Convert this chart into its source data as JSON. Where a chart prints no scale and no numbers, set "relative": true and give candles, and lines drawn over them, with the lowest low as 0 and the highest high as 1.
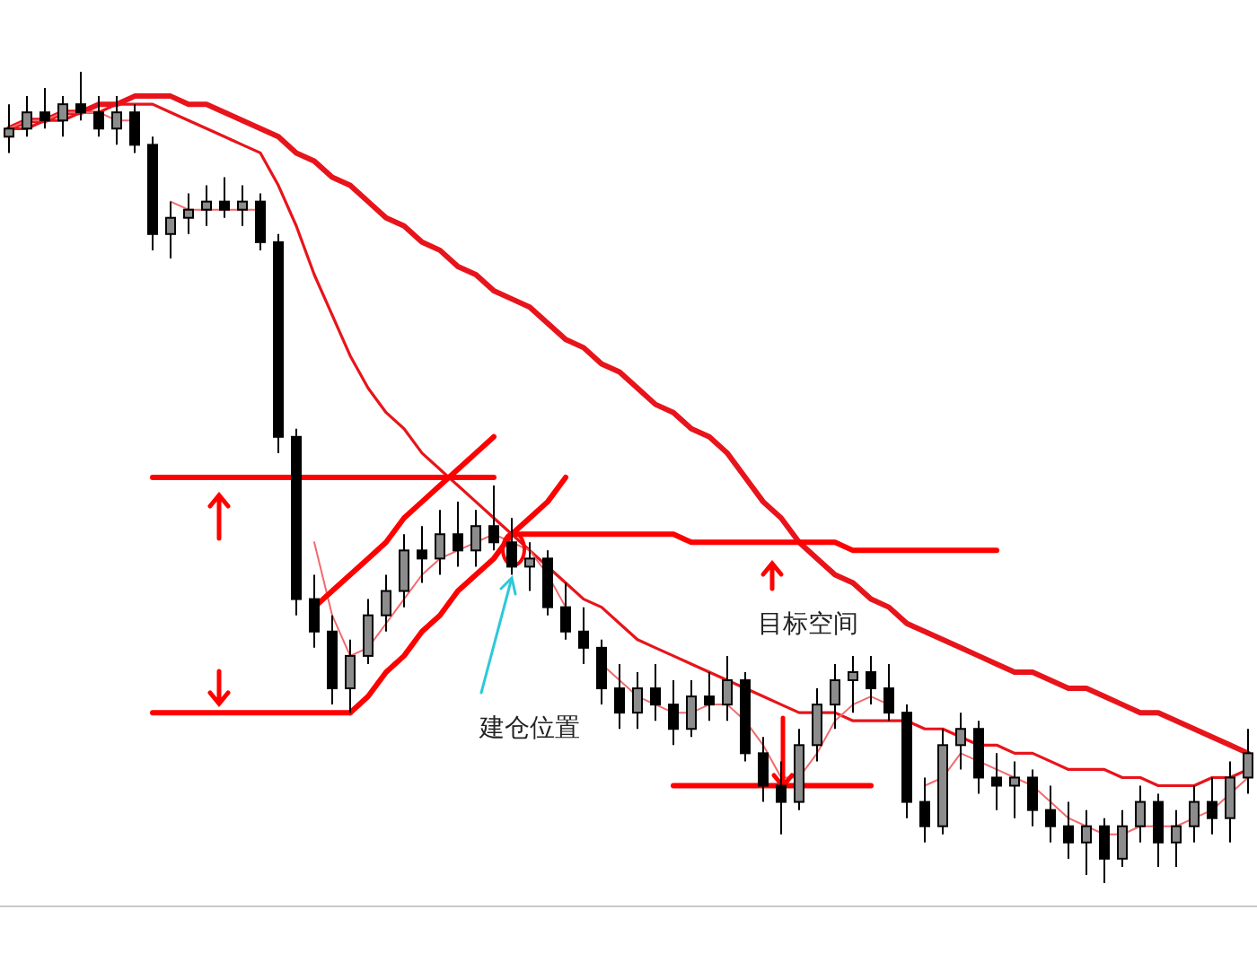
{
  "chart_data": {
    "type": "candlestick",
    "relative": true,
    "categories": [
      null,
      null,
      null,
      null,
      null,
      null,
      null,
      null,
      null,
      null,
      null,
      null,
      null,
      null,
      null,
      null,
      null,
      null,
      null,
      null,
      null,
      null,
      null,
      null,
      null,
      null,
      null,
      null,
      null,
      null,
      null,
      null,
      null,
      null,
      null,
      null,
      null,
      null,
      null,
      null,
      null,
      null,
      null,
      null,
      null,
      null,
      null,
      null,
      null,
      null,
      null,
      null,
      null,
      null,
      null,
      null,
      null,
      null,
      null,
      null,
      null,
      null,
      null,
      null,
      null,
      null,
      null,
      null,
      null,
      null
    ],
    "ohlc": [
      [
        0.92,
        0.96,
        0.9,
        0.93
      ],
      [
        0.93,
        0.97,
        0.92,
        0.95
      ],
      [
        0.95,
        0.98,
        0.93,
        0.94
      ],
      [
        0.94,
        0.97,
        0.92,
        0.96
      ],
      [
        0.96,
        1.0,
        0.94,
        0.95
      ],
      [
        0.95,
        0.97,
        0.92,
        0.93
      ],
      [
        0.93,
        0.97,
        0.91,
        0.95
      ],
      [
        0.95,
        0.96,
        0.9,
        0.91
      ],
      [
        0.91,
        0.92,
        0.78,
        0.8
      ],
      [
        0.8,
        0.84,
        0.77,
        0.82
      ],
      [
        0.82,
        0.85,
        0.8,
        0.83
      ],
      [
        0.83,
        0.86,
        0.81,
        0.84
      ],
      [
        0.84,
        0.87,
        0.82,
        0.83
      ],
      [
        0.83,
        0.86,
        0.81,
        0.84
      ],
      [
        0.84,
        0.85,
        0.78,
        0.79
      ],
      [
        0.79,
        0.8,
        0.53,
        0.55
      ],
      [
        0.55,
        0.56,
        0.33,
        0.35
      ],
      [
        0.35,
        0.38,
        0.29,
        0.31
      ],
      [
        0.31,
        0.33,
        0.22,
        0.24
      ],
      [
        0.24,
        0.3,
        0.21,
        0.28
      ],
      [
        0.28,
        0.35,
        0.27,
        0.33
      ],
      [
        0.33,
        0.38,
        0.31,
        0.36
      ],
      [
        0.36,
        0.43,
        0.34,
        0.41
      ],
      [
        0.41,
        0.44,
        0.37,
        0.4
      ],
      [
        0.4,
        0.46,
        0.38,
        0.43
      ],
      [
        0.43,
        0.47,
        0.39,
        0.41
      ],
      [
        0.41,
        0.46,
        0.39,
        0.44
      ],
      [
        0.44,
        0.49,
        0.41,
        0.42
      ],
      [
        0.42,
        0.45,
        0.38,
        0.39
      ],
      [
        0.39,
        0.42,
        0.36,
        0.4
      ],
      [
        0.4,
        0.41,
        0.33,
        0.34
      ],
      [
        0.34,
        0.37,
        0.3,
        0.31
      ],
      [
        0.31,
        0.34,
        0.27,
        0.29
      ],
      [
        0.29,
        0.3,
        0.22,
        0.24
      ],
      [
        0.24,
        0.27,
        0.19,
        0.21
      ],
      [
        0.21,
        0.26,
        0.19,
        0.24
      ],
      [
        0.24,
        0.27,
        0.2,
        0.22
      ],
      [
        0.22,
        0.25,
        0.17,
        0.19
      ],
      [
        0.19,
        0.25,
        0.18,
        0.23
      ],
      [
        0.23,
        0.26,
        0.2,
        0.22
      ],
      [
        0.22,
        0.28,
        0.2,
        0.25
      ],
      [
        0.25,
        0.26,
        0.15,
        0.16
      ],
      [
        0.16,
        0.18,
        0.1,
        0.12
      ],
      [
        0.12,
        0.15,
        0.06,
        0.1
      ],
      [
        0.1,
        0.19,
        0.09,
        0.17
      ],
      [
        0.17,
        0.24,
        0.15,
        0.22
      ],
      [
        0.22,
        0.27,
        0.19,
        0.25
      ],
      [
        0.25,
        0.28,
        0.21,
        0.26
      ],
      [
        0.26,
        0.28,
        0.22,
        0.24
      ],
      [
        0.24,
        0.27,
        0.2,
        0.21
      ],
      [
        0.21,
        0.22,
        0.08,
        0.1
      ],
      [
        0.1,
        0.13,
        0.05,
        0.07
      ],
      [
        0.07,
        0.19,
        0.06,
        0.17
      ],
      [
        0.17,
        0.21,
        0.14,
        0.19
      ],
      [
        0.19,
        0.2,
        0.11,
        0.13
      ],
      [
        0.13,
        0.16,
        0.09,
        0.12
      ],
      [
        0.12,
        0.15,
        0.08,
        0.13
      ],
      [
        0.13,
        0.14,
        0.07,
        0.09
      ],
      [
        0.09,
        0.12,
        0.05,
        0.07
      ],
      [
        0.07,
        0.1,
        0.03,
        0.05
      ],
      [
        0.05,
        0.09,
        0.01,
        0.07
      ],
      [
        0.07,
        0.08,
        0.0,
        0.03
      ],
      [
        0.03,
        0.09,
        0.02,
        0.07
      ],
      [
        0.07,
        0.12,
        0.05,
        0.1
      ],
      [
        0.1,
        0.11,
        0.02,
        0.05
      ],
      [
        0.05,
        0.09,
        0.02,
        0.07
      ],
      [
        0.07,
        0.12,
        0.05,
        0.1
      ],
      [
        0.1,
        0.13,
        0.06,
        0.08
      ],
      [
        0.08,
        0.15,
        0.05,
        0.13
      ],
      [
        0.13,
        0.19,
        0.11,
        0.16
      ]
    ],
    "series": [
      {
        "type": "line",
        "color": "#e8141b",
        "values": [
          0.93,
          0.94,
          0.94,
          0.95,
          0.95,
          0.96,
          0.96,
          0.97,
          0.97,
          0.97,
          0.96,
          0.96,
          0.95,
          0.94,
          0.93,
          0.92,
          0.9,
          0.89,
          0.87,
          0.86,
          0.84,
          0.82,
          0.81,
          0.79,
          0.78,
          0.76,
          0.75,
          0.73,
          0.72,
          0.71,
          0.69,
          0.67,
          0.66,
          0.64,
          0.63,
          0.61,
          0.59,
          0.58,
          0.56,
          0.55,
          0.53,
          0.5,
          0.47,
          0.45,
          0.42,
          0.4,
          0.38,
          0.37,
          0.35,
          0.34,
          0.32,
          0.31,
          0.3,
          0.29,
          0.28,
          0.27,
          0.26,
          0.26,
          0.25,
          0.24,
          0.24,
          0.23,
          0.22,
          0.21,
          0.21,
          0.2,
          0.19,
          0.18,
          0.17,
          0.16
        ]
      },
      {
        "type": "line",
        "color": "#e8141b",
        "values": [
          0.93,
          0.93,
          0.94,
          0.94,
          0.95,
          0.95,
          0.96,
          0.96,
          0.96,
          0.95,
          0.94,
          0.93,
          0.92,
          0.91,
          0.9,
          0.86,
          0.81,
          0.75,
          0.7,
          0.65,
          0.61,
          0.58,
          0.56,
          0.53,
          0.51,
          0.49,
          0.47,
          0.45,
          0.43,
          0.41,
          0.39,
          0.37,
          0.35,
          0.34,
          0.32,
          0.3,
          0.29,
          0.28,
          0.27,
          0.26,
          0.25,
          0.24,
          0.23,
          0.22,
          0.21,
          0.21,
          0.21,
          0.2,
          0.2,
          0.2,
          0.2,
          0.19,
          0.19,
          0.18,
          0.17,
          0.17,
          0.16,
          0.16,
          0.15,
          0.14,
          0.14,
          0.14,
          0.13,
          0.13,
          0.12,
          0.12,
          0.12,
          0.13,
          0.13,
          0.14
        ]
      },
      {
        "type": "line",
        "color": "#f06a6e",
        "values": [
          0.93,
          0.94,
          0.94,
          0.95,
          0.95,
          0.95,
          0.94,
          0.94,
          null,
          0.84,
          0.83,
          0.83,
          0.83,
          0.83,
          0.83,
          null,
          null,
          0.42,
          0.33,
          0.28,
          0.29,
          0.32,
          0.35,
          0.38,
          0.4,
          0.41,
          0.42,
          0.43,
          0.42,
          0.41,
          0.38,
          0.34,
          null,
          0.27,
          0.25,
          0.23,
          0.22,
          0.21,
          0.21,
          0.22,
          0.22,
          0.2,
          0.17,
          0.13,
          0.13,
          0.16,
          0.2,
          0.22,
          0.23,
          0.22,
          null,
          0.12,
          0.13,
          0.16,
          0.15,
          0.14,
          0.13,
          0.12,
          0.1,
          0.08,
          0.07,
          0.06,
          0.06,
          0.07,
          0.07,
          0.07,
          0.08,
          0.09,
          0.11,
          0.13
        ]
      },
      {
        "type": "line",
        "color": "#ff0000",
        "values": [
          null,
          null,
          null,
          null,
          null,
          null,
          null,
          null,
          0.5,
          0.5,
          0.5,
          0.5,
          0.5,
          0.5,
          0.5,
          0.5,
          0.5,
          0.5,
          0.5,
          0.5,
          0.5,
          0.5,
          0.5,
          0.5,
          0.5,
          0.5,
          0.5,
          0.5,
          null,
          null,
          null,
          null,
          null,
          null,
          null,
          null,
          null,
          null,
          null,
          null,
          null,
          null,
          null,
          null,
          null,
          null,
          null,
          null,
          null,
          null,
          null,
          null,
          null,
          null,
          null,
          null,
          null,
          null,
          null,
          null,
          null,
          null,
          null,
          null,
          null,
          null,
          null,
          null,
          null,
          null
        ]
      },
      {
        "type": "line",
        "color": "#ff0000",
        "values": [
          null,
          null,
          null,
          null,
          null,
          null,
          null,
          null,
          0.21,
          0.21,
          0.21,
          0.21,
          0.21,
          0.21,
          0.21,
          0.21,
          0.21,
          0.21,
          0.21,
          0.21,
          null,
          null,
          null,
          null,
          null,
          null,
          null,
          null,
          null,
          null,
          null,
          null,
          null,
          null,
          null,
          null,
          null,
          null,
          null,
          null,
          null,
          null,
          null,
          null,
          null,
          null,
          null,
          null,
          null,
          null,
          null,
          null,
          null,
          null,
          null,
          null,
          null,
          null,
          null,
          null,
          null,
          null,
          null,
          null,
          null,
          null,
          null,
          null,
          null,
          null
        ]
      },
      {
        "type": "line",
        "color": "#ff0000",
        "values": [
          null,
          null,
          null,
          null,
          null,
          null,
          null,
          null,
          null,
          null,
          null,
          null,
          null,
          null,
          null,
          null,
          null,
          0.34,
          0.36,
          0.38,
          0.4,
          0.42,
          0.45,
          0.47,
          0.49,
          0.51,
          0.53,
          0.55,
          null,
          null,
          null,
          null,
          null,
          null,
          null,
          null,
          null,
          null,
          null,
          null,
          null,
          null,
          null,
          null,
          null,
          null,
          null,
          null,
          null,
          null,
          null,
          null,
          null,
          null,
          null,
          null,
          null,
          null,
          null,
          null,
          null,
          null,
          null,
          null,
          null,
          null,
          null,
          null,
          null,
          null
        ]
      },
      {
        "type": "line",
        "color": "#ff0000",
        "values": [
          null,
          null,
          null,
          null,
          null,
          null,
          null,
          null,
          null,
          null,
          null,
          null,
          null,
          null,
          null,
          null,
          null,
          null,
          null,
          0.21,
          0.23,
          0.26,
          0.28,
          0.31,
          0.33,
          0.36,
          0.38,
          0.4,
          0.43,
          0.45,
          0.47,
          0.5,
          null,
          null,
          null,
          null,
          null,
          null,
          null,
          null,
          null,
          null,
          null,
          null,
          null,
          null,
          null,
          null,
          null,
          null,
          null,
          null,
          null,
          null,
          null,
          null,
          null,
          null,
          null,
          null,
          null,
          null,
          null,
          null,
          null,
          null,
          null,
          null,
          null,
          null
        ]
      },
      {
        "type": "line",
        "color": "#ff0000",
        "values": [
          null,
          null,
          null,
          null,
          null,
          null,
          null,
          null,
          null,
          null,
          null,
          null,
          null,
          null,
          null,
          null,
          null,
          null,
          null,
          null,
          null,
          null,
          null,
          null,
          null,
          null,
          null,
          null,
          0.43,
          0.43,
          0.43,
          0.43,
          0.43,
          0.43,
          0.43,
          0.43,
          0.43,
          0.43,
          0.42,
          0.42,
          0.42,
          0.42,
          0.42,
          0.42,
          0.42,
          0.42,
          0.42,
          0.41,
          0.41,
          0.41,
          0.41,
          0.41,
          0.41,
          0.41,
          0.41,
          0.41,
          null,
          null,
          null,
          null,
          null,
          null,
          null,
          null,
          null,
          null,
          null,
          null,
          null,
          null
        ]
      },
      {
        "type": "line",
        "color": "#ff0000",
        "values": [
          null,
          null,
          null,
          null,
          null,
          null,
          null,
          null,
          null,
          null,
          null,
          null,
          null,
          null,
          null,
          null,
          null,
          null,
          null,
          null,
          null,
          null,
          null,
          null,
          null,
          null,
          null,
          null,
          null,
          null,
          null,
          null,
          null,
          null,
          null,
          null,
          null,
          0.12,
          0.12,
          0.12,
          0.12,
          0.12,
          0.12,
          0.12,
          0.12,
          0.12,
          0.12,
          0.12,
          0.12,
          null,
          null,
          null,
          null,
          null,
          null,
          null,
          null,
          null,
          null,
          null,
          null,
          null,
          null,
          null,
          null,
          null,
          null,
          null,
          null,
          null
        ]
      }
    ],
    "annotations": [
      "建仓位置",
      "目标空间"
    ]
  }
}
